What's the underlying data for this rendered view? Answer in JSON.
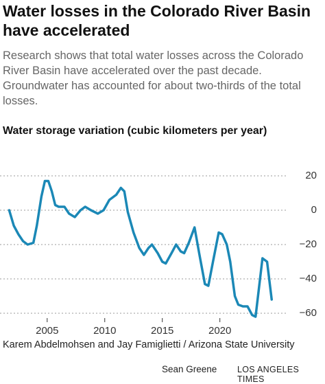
{
  "chart_data": {
    "type": "line",
    "title": "Water losses in the Colorado River Basin have accelerated",
    "subtitle": "Research shows that total water losses across the Colorado River Basin have accelerated over the past decade. Groundwater has accounted for about two-thirds of the total losses.",
    "y_label": "Water storage variation (cubic kilometers per year)",
    "source": "Karem Abdelmohsen and Jay Famiglietti / Arizona State University",
    "credit": "Sean Greene",
    "publisher": "LOS ANGELES TIMES",
    "x": [
      2001.7,
      2002.1,
      2002.5,
      2002.9,
      2003.3,
      2003.8,
      2004.1,
      2004.5,
      2004.8,
      2005.1,
      2005.4,
      2005.7,
      2006.0,
      2006.5,
      2006.9,
      2007.4,
      2007.9,
      2008.3,
      2008.8,
      2009.4,
      2009.9,
      2010.4,
      2011.0,
      2011.4,
      2011.7,
      2012.0,
      2012.5,
      2013.0,
      2013.4,
      2013.8,
      2014.1,
      2014.6,
      2015.0,
      2015.3,
      2015.8,
      2016.2,
      2016.6,
      2016.9,
      2017.3,
      2017.8,
      2018.2,
      2018.7,
      2019.0,
      2019.4,
      2019.9,
      2020.2,
      2020.6,
      2020.9,
      2021.3,
      2021.6,
      2022.0,
      2022.4,
      2022.8,
      2023.1,
      2023.4,
      2023.7,
      2024.1,
      2024.5
    ],
    "series": [
      {
        "name": "Water storage variation",
        "color": "#1b88b6",
        "values": [
          0,
          -9,
          -14,
          -18,
          -20,
          -19,
          -9,
          8,
          17,
          17,
          11,
          3,
          2,
          2,
          -2,
          -4,
          0,
          2,
          0,
          -2,
          0,
          6,
          9,
          13,
          11,
          -1,
          -13,
          -22,
          -26,
          -22,
          -20,
          -25,
          -30,
          -31,
          -25,
          -20,
          -24,
          -25,
          -19,
          -10,
          -25,
          -43,
          -44,
          -30,
          -13,
          -14,
          -20,
          -30,
          -50,
          -55,
          -56,
          -56,
          -61,
          -62,
          -45,
          -28,
          -30,
          -52
        ]
      }
    ],
    "xlim": [
      2001.2,
      2025.2
    ],
    "ylim": [
      -65,
      22
    ],
    "xticks": [
      2005,
      2010,
      2015,
      2020
    ],
    "yticks": [
      20,
      {
        "value": 0,
        "label": "0"
      },
      {
        "value": -20,
        "label": "−20"
      },
      {
        "value": -40,
        "label": "−40"
      },
      {
        "value": -60,
        "label": "−60"
      }
    ],
    "grid": true
  }
}
